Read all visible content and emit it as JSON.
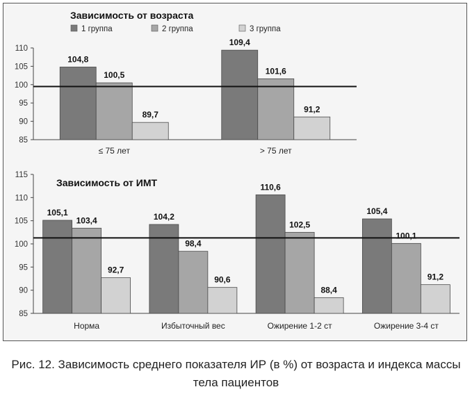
{
  "caption": "Рис. 12. Зависимость среднего показателя ИР (в %) от возраста и индекса массы тела пациентов",
  "colors": {
    "group1": "#7a7a7a",
    "group2": "#a6a6a6",
    "group3": "#d2d2d2",
    "reference_line": "#111111",
    "frame_bg": "#f5f5f5"
  },
  "chart_data": [
    {
      "type": "bar",
      "title": "Зависимость от возраста",
      "categories": [
        "≤ 75 лет",
        "> 75 лет"
      ],
      "series": [
        {
          "name": "1 группа",
          "values": [
            104.8,
            109.4
          ]
        },
        {
          "name": "2 группа",
          "values": [
            100.5,
            101.6
          ]
        },
        {
          "name": "3 группа",
          "values": [
            89.7,
            91.2
          ]
        }
      ],
      "value_labels": [
        [
          "104,8",
          "109,4"
        ],
        [
          "100,5",
          "101,6"
        ],
        [
          "89,7",
          "91,2"
        ]
      ],
      "ylim": [
        85,
        110
      ],
      "yticks": [
        85,
        90,
        95,
        100,
        105,
        110
      ],
      "reference_line": 99.5,
      "legend_position": "top",
      "grid": false,
      "xlabel": "",
      "ylabel": ""
    },
    {
      "type": "bar",
      "title": "Зависимость от ИМТ",
      "categories": [
        "Норма",
        "Избыточный вес",
        "Ожирение 1-2 ст",
        "Ожирение 3-4 ст"
      ],
      "series": [
        {
          "name": "1 группа",
          "values": [
            105.1,
            104.2,
            110.6,
            105.4
          ]
        },
        {
          "name": "2 группа",
          "values": [
            103.4,
            98.4,
            102.5,
            100.1
          ]
        },
        {
          "name": "3 группа",
          "values": [
            92.7,
            90.6,
            88.4,
            91.2
          ]
        }
      ],
      "value_labels": [
        [
          "105,1",
          "104,2",
          "110,6",
          "105,4"
        ],
        [
          "103,4",
          "98,4",
          "102,5",
          "100,1"
        ],
        [
          "92,7",
          "90,6",
          "88,4",
          "91,2"
        ]
      ],
      "ylim": [
        85,
        115
      ],
      "yticks": [
        85,
        90,
        95,
        100,
        105,
        110,
        115
      ],
      "reference_line": 101.3,
      "legend_position": "none",
      "grid": false,
      "xlabel": "",
      "ylabel": ""
    }
  ]
}
